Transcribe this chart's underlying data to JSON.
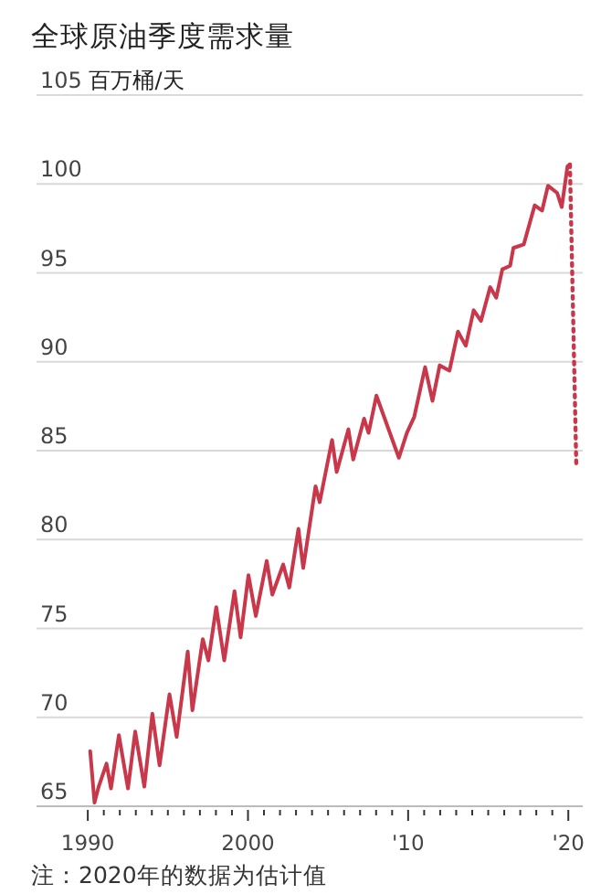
{
  "chart_data": {
    "type": "line",
    "title": "全球原油季度需求量",
    "ylabel": "百万桶/天",
    "annotations": [
      "注：2020年的数据为估计值"
    ],
    "xlim": [
      1986.8,
      2020.9
    ],
    "ylim": [
      65,
      105
    ],
    "yticks": [
      65,
      70,
      75,
      80,
      85,
      90,
      95,
      100,
      105
    ],
    "xticks": [
      {
        "value": 1990,
        "label": "1990"
      },
      {
        "value": 1991,
        "label": null
      },
      {
        "value": 1992,
        "label": null
      },
      {
        "value": 1993,
        "label": null
      },
      {
        "value": 1994,
        "label": null
      },
      {
        "value": 1995,
        "label": null
      },
      {
        "value": 1996,
        "label": null
      },
      {
        "value": 1997,
        "label": null
      },
      {
        "value": 1998,
        "label": null
      },
      {
        "value": 1999,
        "label": null
      },
      {
        "value": 2000,
        "label": "2000"
      },
      {
        "value": 2001,
        "label": null
      },
      {
        "value": 2002,
        "label": null
      },
      {
        "value": 2003,
        "label": null
      },
      {
        "value": 2004,
        "label": null
      },
      {
        "value": 2005,
        "label": null
      },
      {
        "value": 2006,
        "label": null
      },
      {
        "value": 2007,
        "label": null
      },
      {
        "value": 2008,
        "label": null
      },
      {
        "value": 2009,
        "label": null
      },
      {
        "value": 2010,
        "label": "'10"
      },
      {
        "value": 2011,
        "label": null
      },
      {
        "value": 2012,
        "label": null
      },
      {
        "value": 2013,
        "label": null
      },
      {
        "value": 2014,
        "label": null
      },
      {
        "value": 2015,
        "label": null
      },
      {
        "value": 2016,
        "label": null
      },
      {
        "value": 2017,
        "label": null
      },
      {
        "value": 2018,
        "label": null
      },
      {
        "value": 2019,
        "label": null
      },
      {
        "value": 2020,
        "label": "'20"
      }
    ],
    "grid": "y",
    "line_style": "solid",
    "series": [
      {
        "color": "#c8374a",
        "x": [
          1990.15,
          1990.42,
          1990.68,
          1991.17,
          1991.45,
          1991.94,
          1992.51,
          1992.96,
          1993.53,
          1994.03,
          1994.48,
          1995.1,
          1995.55,
          1996.24,
          1996.53,
          1997.18,
          1997.53,
          1998.02,
          1998.52,
          1999.16,
          1999.54,
          2000.03,
          2000.49,
          2001.17,
          2001.52,
          2002.2,
          2002.58,
          2003.15,
          2003.45,
          2004.22,
          2004.48,
          2005.25,
          2005.54,
          2006.27,
          2006.57,
          2007.25,
          2007.53,
          2008.02,
          2009.42,
          2009.92,
          2010.38,
          2011.06,
          2011.52,
          2011.97,
          2012.58,
          2013.11,
          2013.6,
          2014.09,
          2014.55,
          2015.12,
          2015.5,
          2015.88,
          2016.37,
          2016.57,
          2017.22,
          2017.9,
          2018.36,
          2018.73,
          2019.3,
          2019.59,
          2019.95,
          2020.1
        ],
        "values": [
          68.1,
          65.2,
          66.1,
          67.4,
          66.0,
          69.0,
          66.0,
          69.2,
          66.1,
          70.2,
          67.3,
          71.3,
          68.9,
          73.7,
          70.4,
          74.4,
          73.2,
          76.2,
          73.2,
          77.1,
          74.5,
          78.0,
          75.7,
          78.8,
          76.9,
          78.6,
          77.3,
          80.6,
          78.4,
          83.0,
          82.1,
          85.6,
          83.8,
          86.2,
          84.5,
          86.8,
          86.0,
          88.1,
          84.6,
          86.0,
          86.9,
          89.7,
          87.8,
          89.8,
          89.5,
          91.7,
          90.9,
          92.9,
          92.3,
          94.2,
          93.6,
          95.2,
          95.4,
          96.4,
          96.6,
          98.8,
          98.5,
          99.9,
          99.5,
          98.7,
          101.0,
          101.1
        ]
      },
      {
        "color": "#c8374a",
        "line_style": "dotted",
        "x": [
          2020.1,
          2020.5
        ],
        "values": [
          101.1,
          84.1
        ]
      }
    ]
  }
}
